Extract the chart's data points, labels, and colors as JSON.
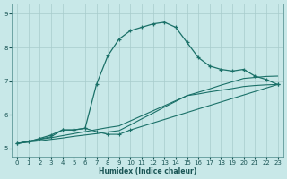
{
  "xlabel": "Humidex (Indice chaleur)",
  "bg_color": "#c8e8e8",
  "grid_color": "#a8cccc",
  "line_color": "#1a7068",
  "xlim": [
    -0.5,
    23.5
  ],
  "ylim": [
    4.75,
    9.3
  ],
  "xticks": [
    0,
    1,
    2,
    3,
    4,
    5,
    6,
    7,
    8,
    9,
    10,
    11,
    12,
    13,
    14,
    15,
    16,
    17,
    18,
    19,
    20,
    21,
    22,
    23
  ],
  "yticks": [
    5,
    6,
    7,
    8,
    9
  ],
  "series1_x": [
    0,
    1,
    2,
    3,
    4,
    5,
    6,
    7,
    8,
    9,
    10,
    11,
    12,
    13,
    14,
    15,
    16,
    17,
    18,
    19,
    20,
    21,
    22,
    23
  ],
  "series1_y": [
    5.15,
    5.2,
    5.3,
    5.4,
    5.55,
    5.55,
    5.6,
    6.9,
    7.75,
    8.25,
    8.5,
    8.6,
    8.7,
    8.75,
    8.6,
    8.15,
    7.7,
    7.45,
    7.35,
    7.3,
    7.35,
    7.15,
    7.05,
    6.9
  ],
  "series2_x": [
    0,
    1,
    2,
    3,
    4,
    5,
    6,
    7,
    8,
    9,
    10,
    11,
    12,
    13,
    14,
    15,
    16,
    17,
    18,
    19,
    20,
    21,
    22,
    23
  ],
  "series2_y": [
    5.15,
    5.19,
    5.23,
    5.27,
    5.31,
    5.36,
    5.4,
    5.44,
    5.49,
    5.53,
    5.7,
    5.88,
    6.05,
    6.23,
    6.4,
    6.57,
    6.62,
    6.68,
    6.73,
    6.78,
    6.84,
    6.87,
    6.89,
    6.9
  ],
  "series3_x": [
    0,
    1,
    2,
    3,
    4,
    5,
    6,
    7,
    8,
    9,
    10,
    11,
    12,
    13,
    14,
    15,
    16,
    17,
    18,
    19,
    20,
    21,
    22,
    23
  ],
  "series3_y": [
    5.15,
    5.21,
    5.27,
    5.32,
    5.38,
    5.44,
    5.5,
    5.56,
    5.62,
    5.67,
    5.82,
    5.97,
    6.12,
    6.27,
    6.42,
    6.57,
    6.67,
    6.77,
    6.88,
    6.98,
    7.08,
    7.11,
    7.14,
    7.15
  ],
  "series4_x": [
    0,
    1,
    2,
    3,
    4,
    5,
    6,
    7,
    8,
    9,
    10,
    23
  ],
  "series4_y": [
    5.15,
    5.22,
    5.28,
    5.35,
    5.55,
    5.55,
    5.6,
    5.5,
    5.42,
    5.42,
    5.55,
    6.9
  ]
}
